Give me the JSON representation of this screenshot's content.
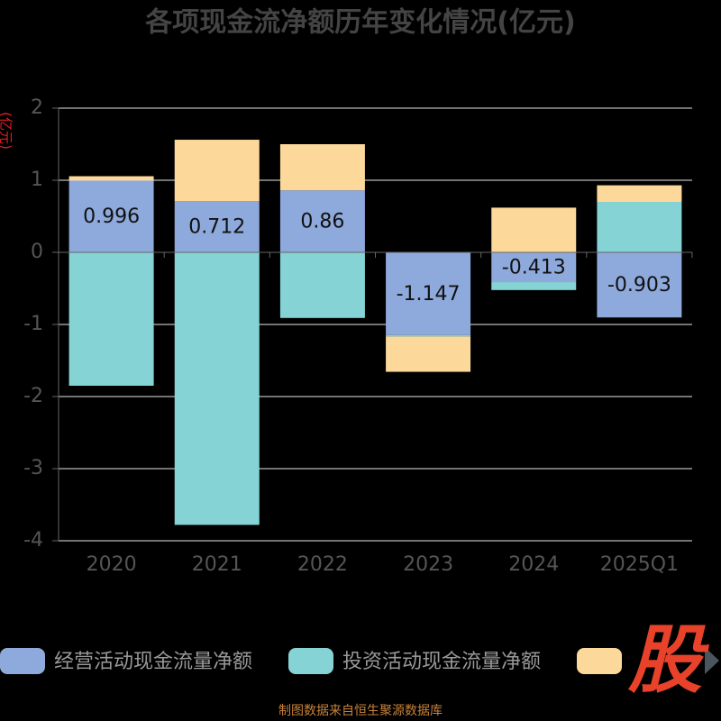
{
  "chart_data": {
    "type": "bar",
    "stacked": true,
    "title": "各项现金流净额历年变化情况(亿元)",
    "y_label": "(亿元)",
    "categories": [
      "2020",
      "2021",
      "2022",
      "2023",
      "2024",
      "2025Q1"
    ],
    "series": [
      {
        "name": "经营活动现金流量净额",
        "color": "#8ea9db",
        "values": [
          0.996,
          0.712,
          0.86,
          -1.147,
          -0.413,
          -0.903
        ],
        "show_labels": true
      },
      {
        "name": "投资活动现金流量净额",
        "color": "#86d3d6",
        "values": [
          -1.85,
          -3.78,
          -0.91,
          -0.02,
          -0.11,
          0.7
        ]
      },
      {
        "color": "#fdd89b",
        "values": [
          0.06,
          0.85,
          0.64,
          -0.49,
          0.62,
          0.23
        ]
      }
    ],
    "ylim": [
      -4,
      2
    ],
    "yticks": [
      -4,
      -3,
      -2,
      -1,
      0,
      1,
      2
    ],
    "grid": true,
    "source": "制图数据来自恒生聚源数据库",
    "watermark": "股"
  }
}
